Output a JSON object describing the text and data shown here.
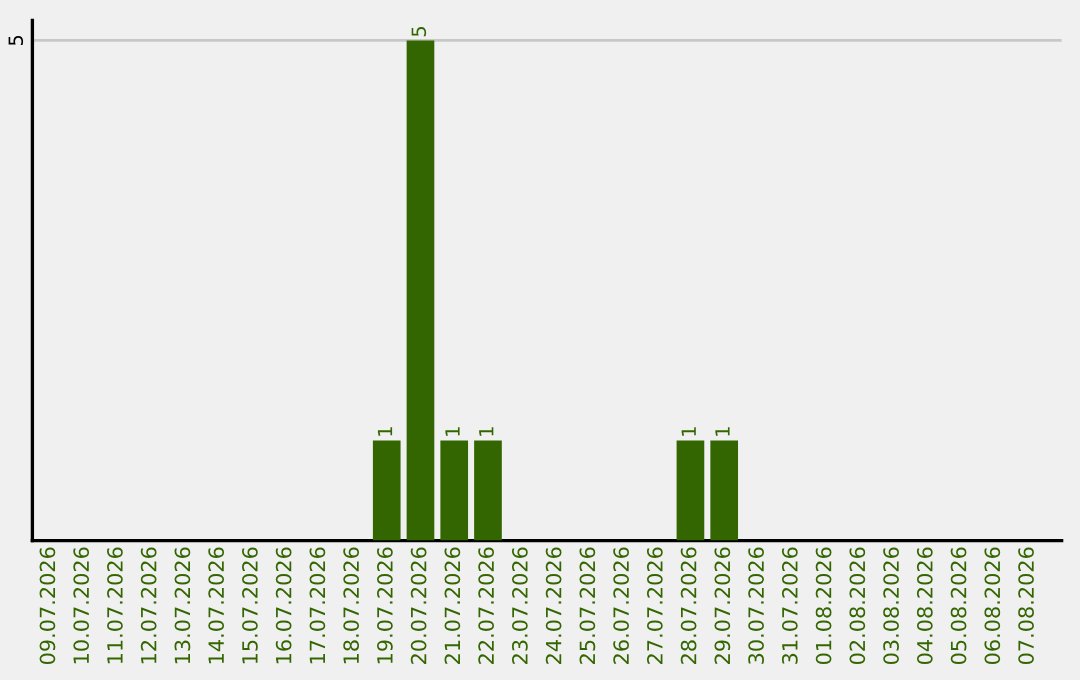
{
  "chart_data": {
    "type": "bar",
    "categories": [
      "09.07.2026",
      "10.07.2026",
      "11.07.2026",
      "12.07.2026",
      "13.07.2026",
      "14.07.2026",
      "15.07.2026",
      "16.07.2026",
      "17.07.2026",
      "18.07.2026",
      "19.07.2026",
      "20.07.2026",
      "21.07.2026",
      "22.07.2026",
      "23.07.2026",
      "24.07.2026",
      "25.07.2026",
      "26.07.2026",
      "27.07.2026",
      "28.07.2026",
      "29.07.2026",
      "30.07.2026",
      "31.07.2026",
      "01.08.2026",
      "02.08.2026",
      "03.08.2026",
      "04.08.2026",
      "05.08.2026",
      "06.08.2026",
      "07.08.2026"
    ],
    "values": [
      0,
      0,
      0,
      0,
      0,
      0,
      0,
      0,
      0,
      0,
      1,
      5,
      1,
      1,
      0,
      0,
      0,
      0,
      0,
      1,
      1,
      0,
      0,
      0,
      0,
      0,
      0,
      0,
      0,
      0
    ],
    "value_labels": [
      null,
      null,
      null,
      null,
      null,
      null,
      null,
      null,
      null,
      null,
      "1",
      "5",
      "1",
      "1",
      null,
      null,
      null,
      null,
      null,
      "1",
      "1",
      null,
      null,
      null,
      null,
      null,
      null,
      null,
      null,
      null
    ],
    "color": "#336600",
    "ylim": [
      0,
      5.2
    ],
    "yticks": [
      5
    ],
    "grid": "y"
  }
}
